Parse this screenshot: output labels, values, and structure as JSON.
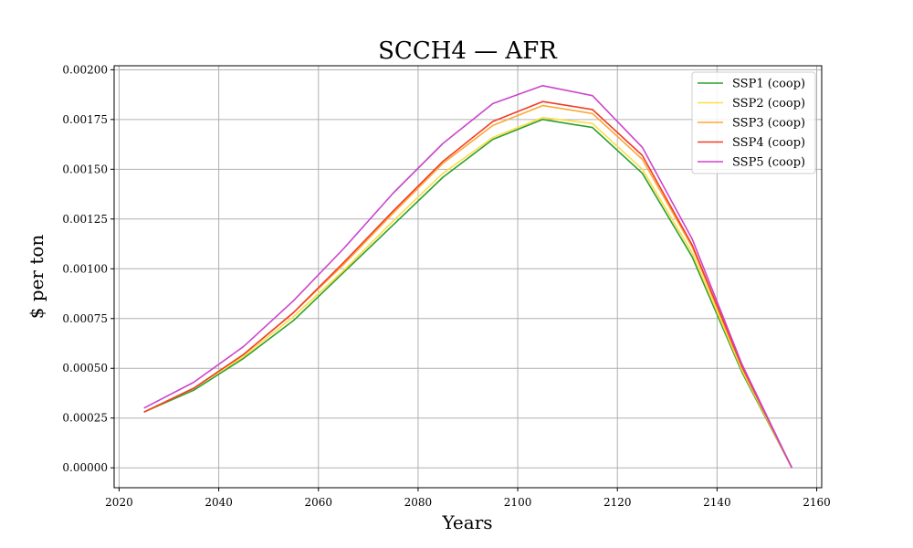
{
  "chart_data": {
    "type": "line",
    "title": "SCCH4 — AFR",
    "xlabel": "Years",
    "ylabel": "$ per ton",
    "xlim": [
      2019,
      2161
    ],
    "ylim": [
      -0.0001,
      0.00202
    ],
    "x_ticks": [
      2020,
      2040,
      2060,
      2080,
      2100,
      2120,
      2140,
      2160
    ],
    "x_tick_labels": [
      "2020",
      "2040",
      "2060",
      "2080",
      "2100",
      "2120",
      "2140",
      "2160"
    ],
    "y_ticks": [
      0,
      0.00025,
      0.0005,
      0.00075,
      0.001,
      0.00125,
      0.0015,
      0.00175,
      0.002
    ],
    "y_tick_labels": [
      "0.00000",
      "0.00025",
      "0.00050",
      "0.00075",
      "0.00100",
      "0.00125",
      "0.00150",
      "0.00175",
      "0.00200"
    ],
    "grid": true,
    "legend_position": "top-right",
    "x": [
      2025,
      2035,
      2045,
      2055,
      2065,
      2075,
      2085,
      2095,
      2105,
      2115,
      2125,
      2135,
      2145,
      2155
    ],
    "series": [
      {
        "name": "SSP1 (coop)",
        "color": "#2ca02c",
        "values": [
          0.00028,
          0.00039,
          0.00055,
          0.00074,
          0.00098,
          0.00122,
          0.00146,
          0.00165,
          0.00175,
          0.00171,
          0.00148,
          0.00106,
          0.00048,
          0.0
        ]
      },
      {
        "name": "SSP2 (coop)",
        "color": "#ffdd44",
        "values": [
          0.00028,
          0.0004,
          0.00056,
          0.00076,
          0.00099,
          0.00124,
          0.00148,
          0.00166,
          0.00176,
          0.00173,
          0.0015,
          0.00108,
          0.00049,
          0.0
        ]
      },
      {
        "name": "SSP3 (coop)",
        "color": "#ffa733",
        "values": [
          0.00028,
          0.0004,
          0.00057,
          0.00078,
          0.00102,
          0.00128,
          0.00153,
          0.00172,
          0.00182,
          0.00178,
          0.00155,
          0.00111,
          0.0005,
          0.0
        ]
      },
      {
        "name": "SSP4 (coop)",
        "color": "#f03c28",
        "values": [
          0.00028,
          0.0004,
          0.00057,
          0.00078,
          0.00103,
          0.00129,
          0.00154,
          0.00174,
          0.00184,
          0.0018,
          0.00157,
          0.00112,
          0.00051,
          0.0
        ]
      },
      {
        "name": "SSP5 (coop)",
        "color": "#cc44cc",
        "values": [
          0.0003,
          0.00043,
          0.00061,
          0.00084,
          0.0011,
          0.00138,
          0.00163,
          0.00183,
          0.00192,
          0.00187,
          0.00161,
          0.00115,
          0.00052,
          0.0
        ]
      }
    ]
  }
}
